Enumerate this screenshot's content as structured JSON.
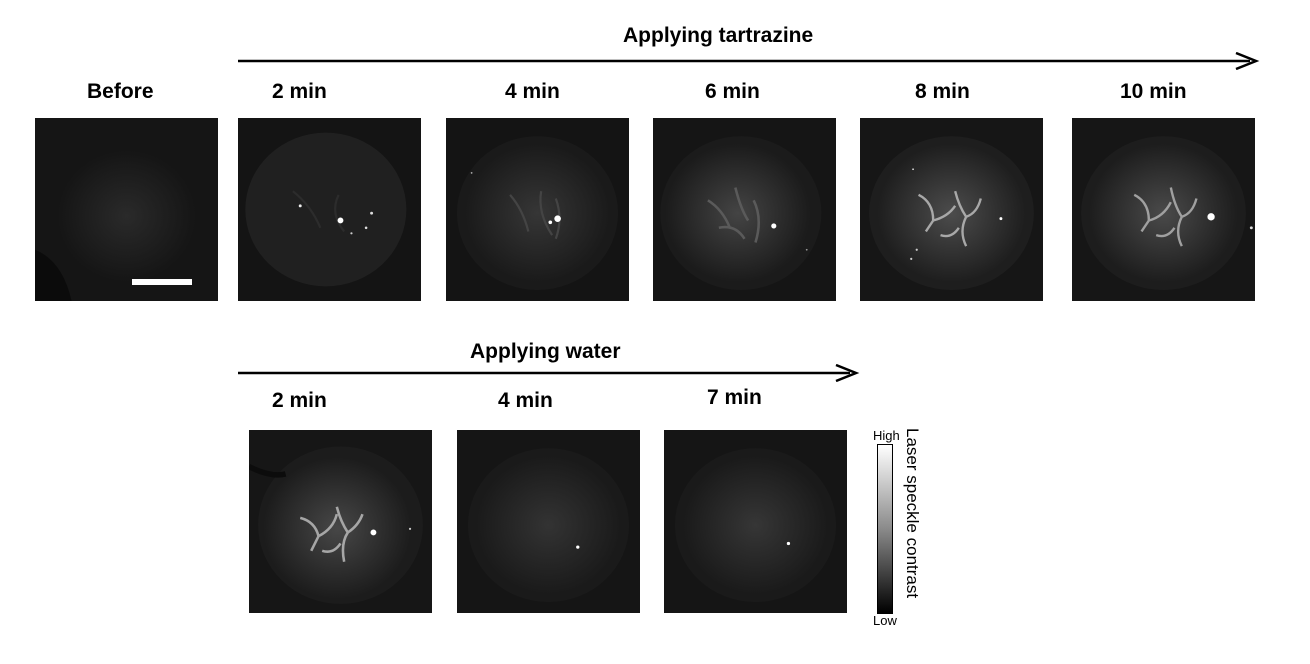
{
  "top_row": {
    "arrow_label": "Applying tartrazine",
    "before_label": "Before",
    "time_labels": [
      "2 min",
      "4 min",
      "6 min",
      "8 min",
      "10 min"
    ]
  },
  "bottom_row": {
    "arrow_label": "Applying water",
    "time_labels": [
      "2 min",
      "4 min",
      "7 min"
    ]
  },
  "colorbar": {
    "high_label": "High",
    "low_label": "Low",
    "title": "Laser speckle contrast"
  },
  "colors": {
    "panel_background": "#121212",
    "text": "#000000"
  }
}
